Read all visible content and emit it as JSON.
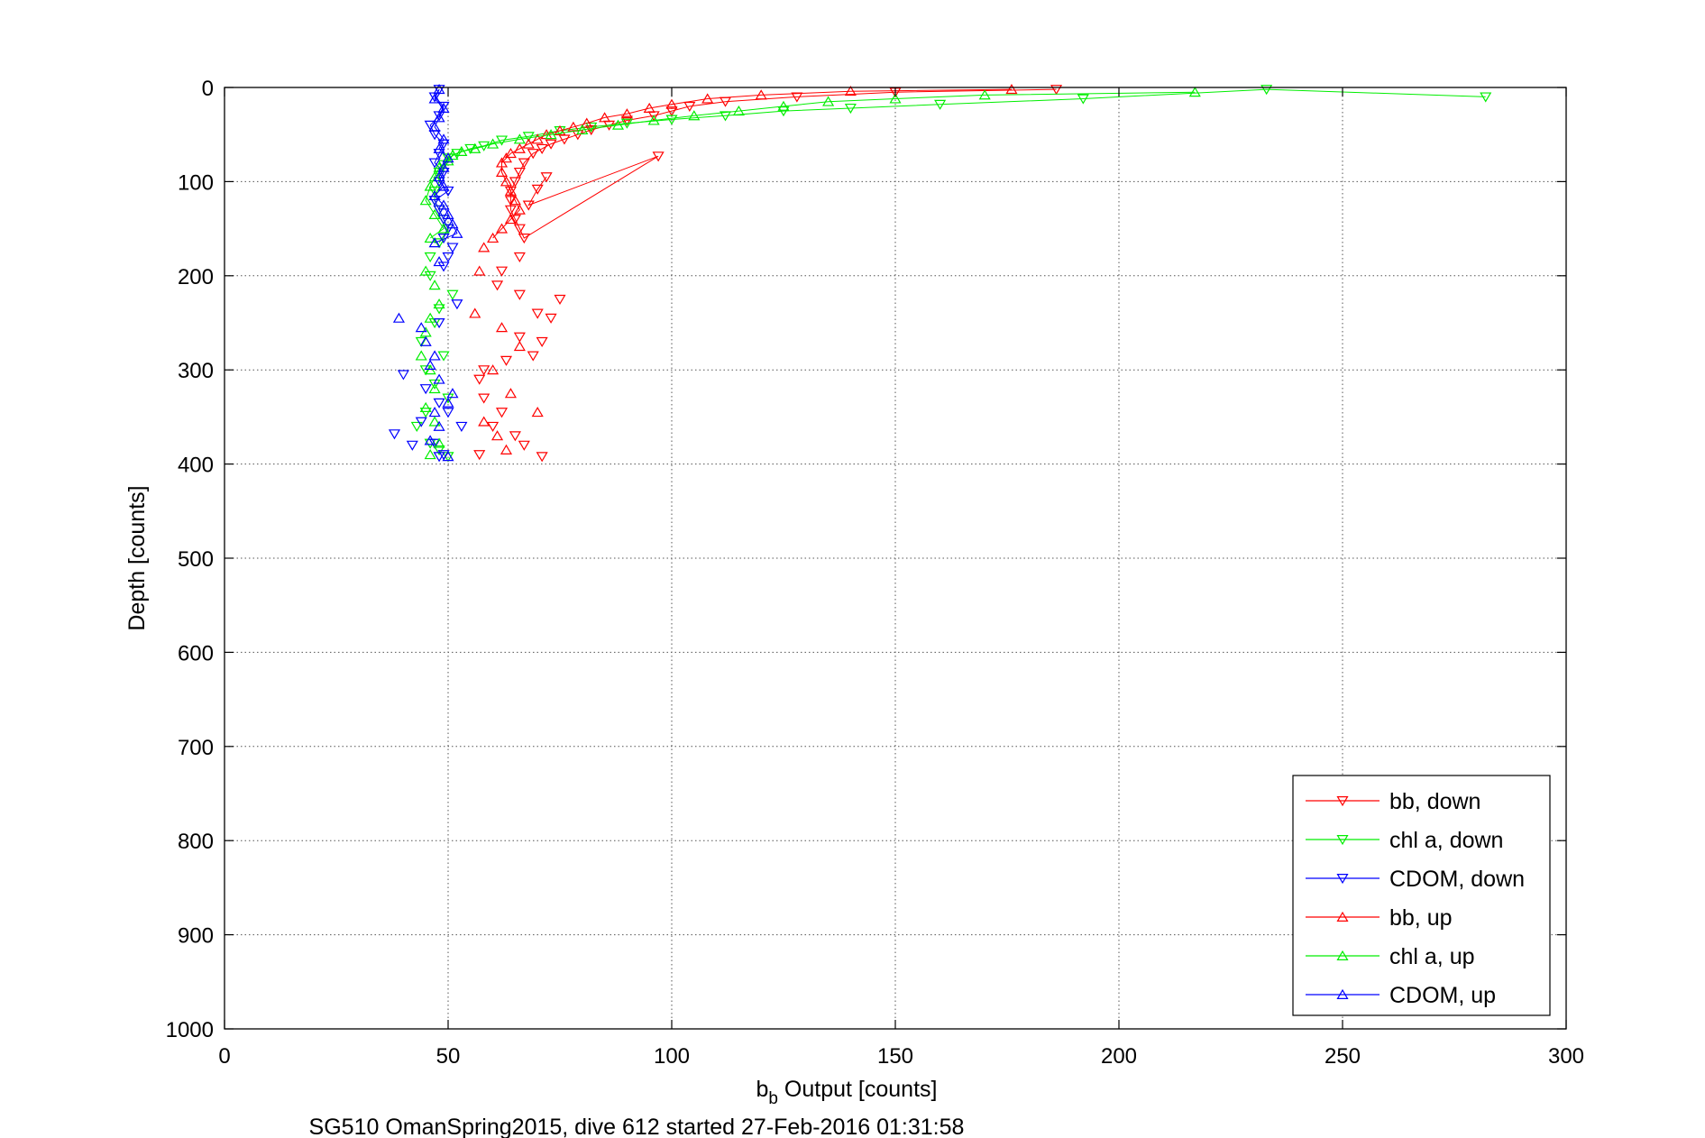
{
  "chart_data": {
    "type": "scatter",
    "title": "",
    "xlabel": {
      "base": "b",
      "sub": "b",
      "rest": " Output [counts]"
    },
    "ylabel": "Depth [counts]",
    "caption": "SG510 OmanSpring2015, dive 612 started 27-Feb-2016 01:31:58",
    "xlim": [
      0,
      300
    ],
    "ylim": [
      0,
      1000
    ],
    "y_reversed": true,
    "grid": true,
    "legend_position": "lower-right",
    "x_ticks": [
      0,
      50,
      100,
      150,
      200,
      250,
      300
    ],
    "y_ticks": [
      0,
      100,
      200,
      300,
      400,
      500,
      600,
      700,
      800,
      900,
      1000
    ],
    "x_tick_labels": [
      "0",
      "50",
      "100",
      "150",
      "200",
      "250",
      "300"
    ],
    "y_tick_labels": [
      "0",
      "100",
      "200",
      "300",
      "400",
      "500",
      "600",
      "700",
      "800",
      "900",
      "1000"
    ],
    "series": [
      {
        "name": "bb, down",
        "color": "#ff0000",
        "marker": "triangle-down",
        "x": [
          186,
          150,
          128,
          112,
          104,
          100,
          96,
          90,
          86,
          82,
          79,
          76,
          73,
          71,
          69,
          67,
          66,
          65,
          64,
          64,
          64,
          65,
          66,
          67,
          97,
          68,
          70,
          72,
          66,
          62,
          61,
          66,
          70,
          75,
          73,
          66,
          71,
          69,
          63,
          58,
          57,
          58,
          62,
          60,
          65,
          67,
          57,
          71
        ],
        "y": [
          2,
          5,
          10,
          15,
          20,
          25,
          30,
          35,
          40,
          45,
          50,
          55,
          60,
          65,
          70,
          80,
          90,
          100,
          110,
          120,
          130,
          140,
          150,
          160,
          73,
          125,
          108,
          95,
          180,
          195,
          210,
          220,
          240,
          225,
          245,
          265,
          270,
          285,
          290,
          300,
          310,
          330,
          345,
          360,
          370,
          380,
          390,
          392
        ]
      },
      {
        "name": "chl a, down",
        "color": "#00ee00",
        "marker": "triangle-down",
        "x": [
          282,
          233,
          192,
          160,
          140,
          125,
          112,
          100,
          90,
          82,
          75,
          68,
          62,
          58,
          55,
          52,
          50,
          49,
          48,
          48,
          47,
          47,
          48,
          49,
          50,
          48,
          46,
          46,
          51,
          48,
          47,
          44,
          49,
          45,
          47,
          50,
          45,
          43,
          46,
          48,
          50
        ],
        "y": [
          10,
          2,
          12,
          18,
          22,
          25,
          30,
          34,
          38,
          42,
          46,
          52,
          56,
          62,
          65,
          70,
          75,
          82,
          90,
          100,
          110,
          120,
          130,
          140,
          150,
          165,
          180,
          200,
          220,
          235,
          250,
          270,
          285,
          300,
          315,
          330,
          345,
          360,
          378,
          385,
          392
        ]
      },
      {
        "name": "CDOM, down",
        "color": "#0000ff",
        "marker": "triangle-down",
        "x": [
          48,
          47,
          49,
          48,
          46,
          47,
          49,
          48,
          47,
          49,
          48,
          50,
          47,
          48,
          49,
          50,
          49,
          51,
          50,
          49,
          52,
          48,
          40,
          45,
          48,
          44,
          50,
          53,
          38,
          42,
          49,
          47,
          48
        ],
        "y": [
          2,
          10,
          20,
          30,
          40,
          50,
          60,
          70,
          80,
          90,
          100,
          110,
          120,
          130,
          140,
          150,
          160,
          170,
          180,
          190,
          230,
          250,
          305,
          320,
          335,
          355,
          345,
          360,
          368,
          380,
          390,
          378,
          392
        ]
      },
      {
        "name": "bb, up",
        "color": "#ff0000",
        "marker": "triangle-up",
        "x": [
          176,
          140,
          120,
          108,
          100,
          95,
          90,
          85,
          81,
          78,
          75,
          72,
          70,
          68,
          66,
          64,
          63,
          62,
          62,
          63,
          64,
          65,
          66,
          64,
          62,
          60,
          58,
          57,
          56,
          62,
          66,
          60,
          64,
          70,
          58,
          61,
          63
        ],
        "y": [
          2,
          4,
          8,
          12,
          18,
          22,
          28,
          32,
          38,
          42,
          46,
          50,
          55,
          60,
          65,
          70,
          75,
          80,
          90,
          100,
          110,
          120,
          130,
          140,
          150,
          160,
          170,
          195,
          240,
          255,
          275,
          300,
          325,
          345,
          355,
          370,
          385
        ]
      },
      {
        "name": "chl a, up",
        "color": "#00ee00",
        "marker": "triangle-up",
        "x": [
          217,
          170,
          150,
          135,
          125,
          115,
          105,
          96,
          88,
          80,
          73,
          66,
          60,
          56,
          53,
          51,
          50,
          48,
          47,
          46,
          45,
          47,
          49,
          46,
          45,
          47,
          48,
          46,
          45,
          44,
          46,
          47,
          45,
          47,
          48,
          46
        ],
        "y": [
          5,
          8,
          12,
          15,
          20,
          25,
          30,
          35,
          40,
          45,
          50,
          55,
          60,
          65,
          68,
          72,
          78,
          85,
          95,
          105,
          120,
          135,
          150,
          160,
          195,
          210,
          230,
          245,
          260,
          285,
          300,
          320,
          340,
          355,
          378,
          390
        ]
      },
      {
        "name": "CDOM, up",
        "color": "#0000ff",
        "marker": "triangle-up",
        "x": [
          48,
          47,
          49,
          48,
          47,
          49,
          48,
          50,
          49,
          48,
          49,
          47,
          49,
          50,
          51,
          52,
          47,
          48,
          39,
          44,
          45,
          47,
          46,
          48,
          51,
          50,
          47,
          48,
          46,
          50
        ],
        "y": [
          2,
          12,
          22,
          32,
          42,
          55,
          65,
          75,
          85,
          95,
          105,
          115,
          125,
          135,
          145,
          155,
          165,
          185,
          245,
          255,
          270,
          285,
          295,
          310,
          325,
          335,
          345,
          360,
          375,
          392
        ]
      }
    ]
  }
}
